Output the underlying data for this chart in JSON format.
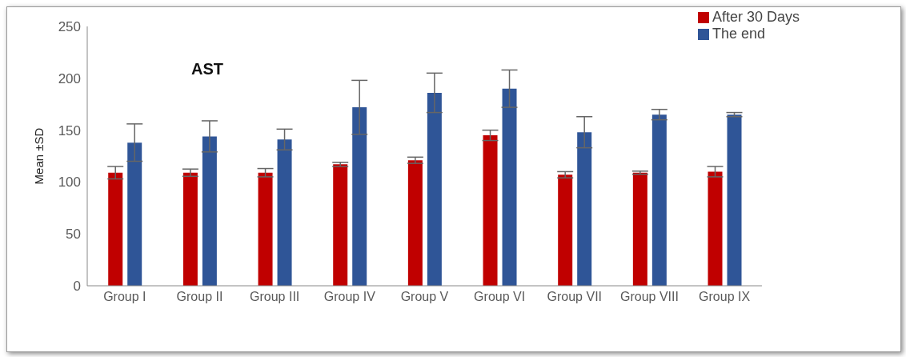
{
  "chart_data": {
    "type": "bar",
    "title": "AST",
    "ylabel": "Mean ±SD",
    "categories": [
      "Group I",
      "Group II",
      "Group III",
      "Group IV",
      "Group V",
      "Group VI",
      "Group VII",
      "Group VIII",
      "Group IX"
    ],
    "series": [
      {
        "name": "After 30 Days",
        "color": "#c00000",
        "values": [
          109,
          109,
          109,
          117,
          121,
          145,
          107,
          109,
          110
        ],
        "errors": [
          6,
          3.5,
          4,
          2,
          3,
          5,
          3,
          1.5,
          5
        ]
      },
      {
        "name": "The end",
        "color": "#2f5597",
        "values": [
          138,
          144,
          141,
          172,
          186,
          190,
          148,
          165,
          165
        ],
        "errors": [
          18,
          15,
          10,
          26,
          19,
          18,
          15,
          5,
          2
        ]
      }
    ],
    "ylim": [
      0,
      250
    ],
    "yticks": [
      0,
      50,
      100,
      150,
      200,
      250
    ],
    "legend": "top right"
  }
}
